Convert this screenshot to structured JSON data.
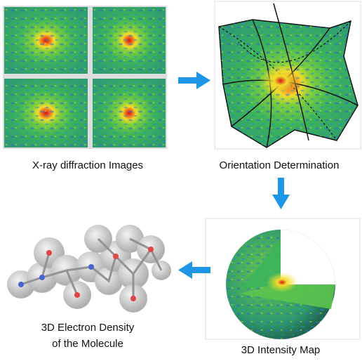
{
  "nodes": [
    {
      "label": [
        "X-ray diffraction Images"
      ]
    },
    {
      "label": [
        "Orientation Determination"
      ]
    },
    {
      "label": [
        "3D Intensity Map"
      ]
    },
    {
      "label": [
        "3D Electron Density",
        "of the Molecule"
      ]
    }
  ]
}
